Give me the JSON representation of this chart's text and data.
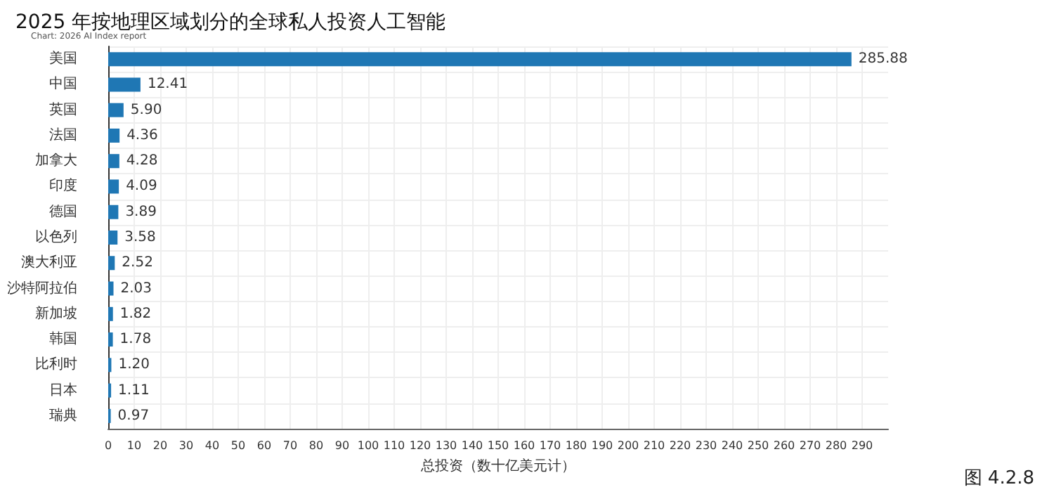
{
  "chart_data": {
    "type": "bar",
    "orientation": "horizontal",
    "title": "2025 年按地理区域划分的全球私人投资人工智能",
    "xlabel": "总投资（数十亿美元计）",
    "categories": [
      "美国",
      "中国",
      "英国",
      "法国",
      "加拿大",
      "印度",
      "德国",
      "以色列",
      "澳大利亚",
      "沙特阿拉伯",
      "新加坡",
      "韩国",
      "比利时",
      "日本",
      "瑞典"
    ],
    "values": [
      285.88,
      12.41,
      5.9,
      4.36,
      4.28,
      4.09,
      3.89,
      3.58,
      2.52,
      2.03,
      1.82,
      1.78,
      1.2,
      1.11,
      0.97
    ],
    "value_labels": [
      "285.88",
      "12.41",
      "5.90",
      "4.36",
      "4.28",
      "4.09",
      "3.89",
      "3.58",
      "2.52",
      "2.03",
      "1.82",
      "1.78",
      "1.20",
      "1.11",
      "0.97"
    ],
    "color": "#1f77b4",
    "xlim": [
      0,
      300
    ],
    "xticks": [
      0,
      10,
      20,
      30,
      40,
      50,
      60,
      70,
      80,
      90,
      100,
      110,
      120,
      130,
      140,
      150,
      160,
      170,
      180,
      190,
      200,
      210,
      220,
      230,
      240,
      250,
      260,
      270,
      280,
      290
    ],
    "grid": true,
    "annotations": [
      "Chart: 2026 AI Index report",
      "图 4.2.8"
    ]
  }
}
